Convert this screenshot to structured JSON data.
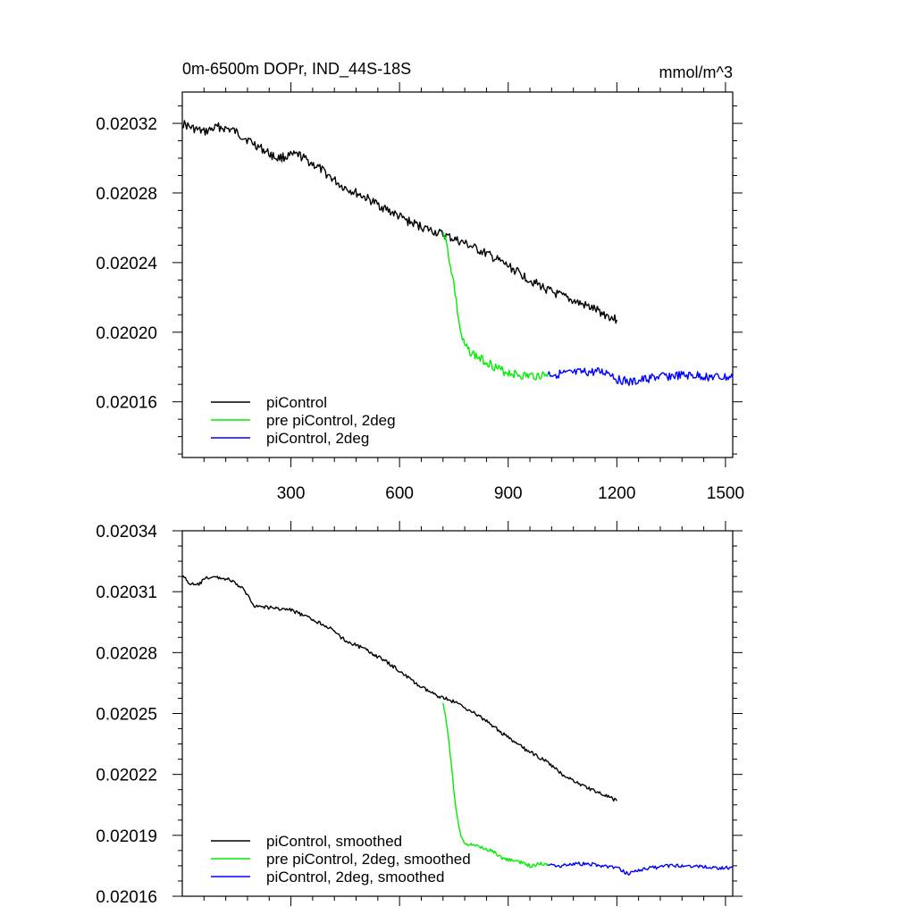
{
  "chart_data": [
    {
      "type": "line",
      "title": "0m-6500m DOPr, IND_44S-18S",
      "units": "mmol/m^3",
      "xlim": [
        0,
        1520
      ],
      "ylim": [
        0.020128,
        0.020338
      ],
      "x_tick_labels": [
        "300",
        "600",
        "900",
        "1200",
        "1500"
      ],
      "x_tick_values": [
        300,
        600,
        900,
        1200,
        1500
      ],
      "y_tick_labels": [
        "0.02016",
        "0.02020",
        "0.02024",
        "0.02028",
        "0.02032"
      ],
      "y_tick_values": [
        0.02016,
        0.0202,
        0.02024,
        0.02028,
        0.02032
      ],
      "series": [
        {
          "name": "piControl",
          "color": "#000000",
          "x": [
            0,
            30,
            60,
            100,
            140,
            200,
            260,
            320,
            380,
            440,
            500,
            560,
            620,
            680,
            720,
            780,
            840,
            900,
            960,
            1020,
            1080,
            1140,
            1180,
            1200
          ],
          "y": [
            0.02032,
            0.020317,
            0.020315,
            0.020318,
            0.020316,
            0.020308,
            0.0203,
            0.020302,
            0.020294,
            0.020284,
            0.020278,
            0.020271,
            0.020264,
            0.020259,
            0.020256,
            0.020251,
            0.020245,
            0.020238,
            0.02023,
            0.020223,
            0.020218,
            0.020213,
            0.020209,
            0.020207
          ]
        },
        {
          "name": "pre piControl, 2deg",
          "color": "#00ee00",
          "x": [
            720,
            730,
            740,
            750,
            760,
            770,
            780,
            800,
            820,
            850,
            880,
            900,
            940,
            980,
            1010
          ],
          "y": [
            0.020259,
            0.02025,
            0.020239,
            0.020228,
            0.020212,
            0.020198,
            0.020192,
            0.020188,
            0.020185,
            0.020182,
            0.020178,
            0.020177,
            0.020175,
            0.020175,
            0.020176
          ]
        },
        {
          "name": "piControl, 2deg",
          "color": "#0000ff",
          "x": [
            1010,
            1060,
            1120,
            1180,
            1200,
            1240,
            1300,
            1360,
            1420,
            1480,
            1520
          ],
          "y": [
            0.020176,
            0.020176,
            0.020177,
            0.020177,
            0.020173,
            0.020171,
            0.020174,
            0.020175,
            0.020175,
            0.020174,
            0.020174
          ]
        }
      ],
      "legend": [
        "piControl",
        "pre piControl, 2deg",
        "piControl, 2deg"
      ],
      "legend_position": "bottom-left"
    },
    {
      "type": "line",
      "title": "",
      "xlim": [
        0,
        1520
      ],
      "ylim": [
        0.02016,
        0.02034
      ],
      "x_tick_labels": [],
      "x_tick_values": [
        300,
        600,
        900,
        1200,
        1500
      ],
      "y_tick_labels": [
        "0.02016",
        "0.02019",
        "0.02022",
        "0.02025",
        "0.02028",
        "0.02031",
        "0.02034"
      ],
      "y_tick_values": [
        0.02016,
        0.02019,
        0.02022,
        0.02025,
        0.02028,
        0.02031,
        0.02034
      ],
      "series": [
        {
          "name": "piControl, smoothed",
          "color": "#000000",
          "x": [
            0,
            20,
            40,
            70,
            100,
            130,
            170,
            200,
            250,
            300,
            350,
            400,
            450,
            500,
            550,
            600,
            650,
            700,
            720,
            760,
            800,
            850,
            900,
            950,
            1000,
            1050,
            1100,
            1150,
            1200
          ],
          "y": [
            0.020318,
            0.020314,
            0.020313,
            0.020317,
            0.020317,
            0.020316,
            0.020311,
            0.020303,
            0.020302,
            0.020301,
            0.020297,
            0.020293,
            0.020286,
            0.020282,
            0.020277,
            0.020271,
            0.020264,
            0.020259,
            0.020258,
            0.020255,
            0.020251,
            0.020245,
            0.020238,
            0.020232,
            0.020227,
            0.02022,
            0.020215,
            0.020211,
            0.020207
          ]
        },
        {
          "name": "pre piControl, 2deg, smoothed",
          "color": "#00ee00",
          "x": [
            720,
            730,
            740,
            750,
            760,
            770,
            780,
            800,
            830,
            860,
            880,
            900,
            930,
            960,
            990,
            1010
          ],
          "y": [
            0.020256,
            0.020245,
            0.02023,
            0.020212,
            0.020198,
            0.020189,
            0.020186,
            0.020185,
            0.020184,
            0.020182,
            0.020179,
            0.020178,
            0.020177,
            0.020175,
            0.020176,
            0.020176
          ]
        },
        {
          "name": "piControl, 2deg, smoothed",
          "color": "#0000ff",
          "x": [
            1010,
            1040,
            1080,
            1120,
            1160,
            1200,
            1230,
            1260,
            1300,
            1340,
            1380,
            1420,
            1460,
            1500,
            1520
          ],
          "y": [
            0.020176,
            0.020175,
            0.020176,
            0.020176,
            0.020175,
            0.020174,
            0.020171,
            0.020173,
            0.020174,
            0.020175,
            0.020175,
            0.020175,
            0.020174,
            0.020174,
            0.020174
          ]
        }
      ],
      "legend": [
        "piControl, smoothed",
        "pre piControl, 2deg, smoothed",
        "piControl, 2deg, smoothed"
      ],
      "legend_position": "bottom-left"
    }
  ]
}
